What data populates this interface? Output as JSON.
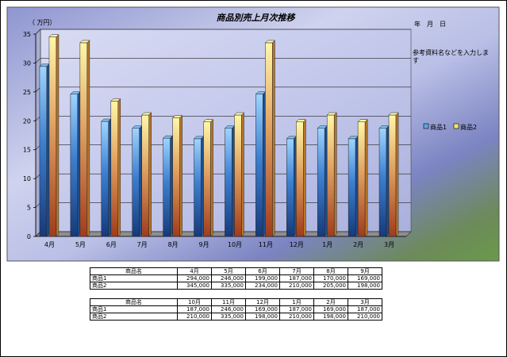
{
  "chart_data": {
    "type": "bar",
    "title": "商品別売上月次推移",
    "unit_label": "（ 万円）",
    "date_label": "年　月　日",
    "note": "参考資料名などを入力します",
    "categories": [
      "4月",
      "5月",
      "6月",
      "7月",
      "8月",
      "9月",
      "10月",
      "11月",
      "12月",
      "1月",
      "2月",
      "3月"
    ],
    "series": [
      {
        "name": "商品1",
        "values": [
          29.4,
          24.6,
          19.9,
          18.7,
          17.0,
          16.9,
          18.7,
          24.6,
          16.9,
          18.7,
          16.9,
          18.7
        ]
      },
      {
        "name": "商品2",
        "values": [
          34.5,
          33.5,
          23.4,
          21.0,
          20.5,
          19.8,
          21.0,
          33.5,
          19.8,
          21.0,
          19.8,
          21.0
        ]
      }
    ],
    "ylim": [
      0,
      35
    ],
    "yticks": [
      0,
      5,
      10,
      15,
      20,
      25,
      30,
      35
    ],
    "grid": true,
    "legend": "right"
  },
  "colors": {
    "series1": "#5aa8e8",
    "series2": "#f2e47a",
    "plot_bg": "#c8cce8",
    "outer_bg": "#9fa8d8"
  },
  "tables": [
    {
      "header": [
        "商品名",
        "4月",
        "5月",
        "6月",
        "7月",
        "8月",
        "9月"
      ],
      "rows": [
        [
          "商品1",
          "294,000",
          "246,000",
          "199,000",
          "187,000",
          "170,000",
          "169,000"
        ],
        [
          "商品2",
          "345,000",
          "335,000",
          "234,000",
          "210,000",
          "205,000",
          "198,000"
        ]
      ]
    },
    {
      "header": [
        "商品名",
        "10月",
        "11月",
        "12月",
        "1月",
        "2月",
        "3月"
      ],
      "rows": [
        [
          "商品1",
          "187,000",
          "246,000",
          "169,000",
          "187,000",
          "169,000",
          "187,000"
        ],
        [
          "商品2",
          "210,000",
          "335,000",
          "198,000",
          "210,000",
          "198,000",
          "210,000"
        ]
      ]
    }
  ]
}
